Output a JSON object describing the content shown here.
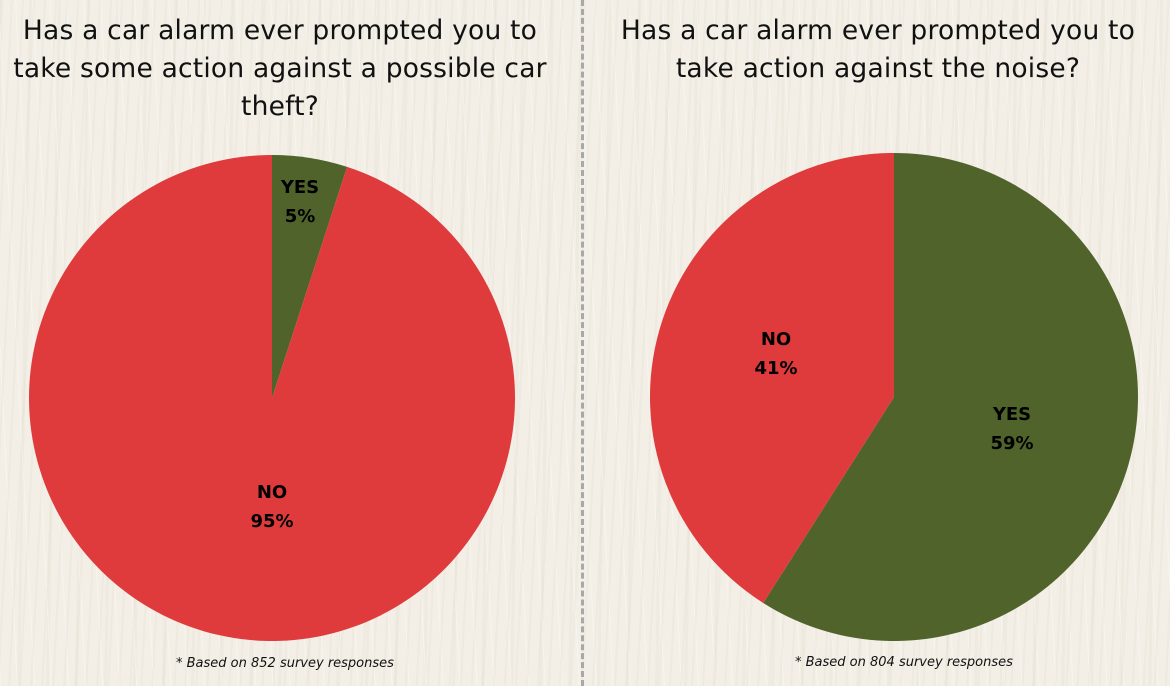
{
  "chart_data": [
    {
      "type": "pie",
      "title": "Has a car alarm ever prompted you to take some action against a possible car theft?",
      "categories": [
        "YES",
        "NO"
      ],
      "values": [
        5,
        95
      ],
      "value_labels": [
        "5%",
        "95%"
      ],
      "colors": [
        "#4f632b",
        "#e03b3c"
      ],
      "start_angle_deg": 0,
      "direction": "clockwise",
      "footnote": "* Based on 852 survey responses"
    },
    {
      "type": "pie",
      "title": "Has a car alarm ever prompted you to take action against the noise?",
      "categories": [
        "YES",
        "NO"
      ],
      "values": [
        59,
        41
      ],
      "value_labels": [
        "59%",
        "41%"
      ],
      "colors": [
        "#4f632b",
        "#e03b3c"
      ],
      "start_angle_deg": 0,
      "direction": "clockwise",
      "footnote": "* Based on 804 survey responses"
    }
  ]
}
